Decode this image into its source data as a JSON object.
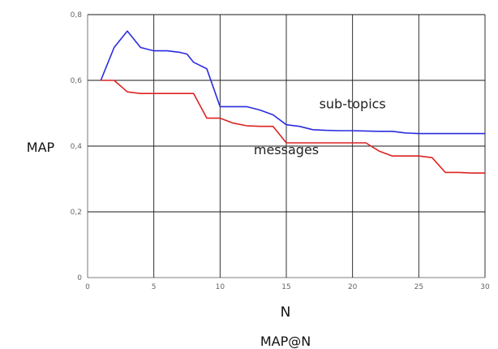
{
  "chart_data": {
    "type": "line",
    "title": "",
    "caption": "MAP@N",
    "xlabel": "N",
    "ylabel": "MAP",
    "xlim": [
      0,
      30
    ],
    "ylim": [
      0,
      0.8
    ],
    "x_ticks": [
      0,
      5,
      10,
      15,
      20,
      25,
      30
    ],
    "x_tick_labels": [
      "0",
      "5",
      "10",
      "15",
      "20",
      "25",
      "30"
    ],
    "y_ticks": [
      0,
      0.2,
      0.4,
      0.6,
      0.8
    ],
    "y_tick_labels": [
      "0",
      "0,2",
      "0,4",
      "0,6",
      "0,8"
    ],
    "grid": true,
    "series": [
      {
        "name": "sub-topics",
        "color": "#2b2be0",
        "x": [
          1,
          2,
          3,
          4,
          5,
          6,
          7,
          7.5,
          8,
          9,
          10,
          11,
          12,
          13,
          14,
          15,
          16,
          17,
          18,
          19,
          20,
          21,
          22,
          23,
          24,
          25,
          26,
          27,
          28,
          29,
          30
        ],
        "y": [
          0.6,
          0.7,
          0.75,
          0.7,
          0.69,
          0.69,
          0.685,
          0.68,
          0.655,
          0.635,
          0.52,
          0.52,
          0.52,
          0.51,
          0.495,
          0.465,
          0.46,
          0.45,
          0.448,
          0.447,
          0.447,
          0.446,
          0.445,
          0.445,
          0.44,
          0.438,
          0.438,
          0.438,
          0.438,
          0.438,
          0.438
        ]
      },
      {
        "name": "messages",
        "color": "#dd2222",
        "x": [
          1,
          2,
          3,
          4,
          5,
          6,
          7,
          8,
          9,
          10,
          11,
          12,
          13,
          14,
          15,
          16,
          17,
          18,
          19,
          20,
          21,
          22,
          23,
          24,
          25,
          26,
          27,
          28,
          29,
          30
        ],
        "y": [
          0.6,
          0.6,
          0.565,
          0.56,
          0.56,
          0.56,
          0.56,
          0.56,
          0.485,
          0.485,
          0.47,
          0.462,
          0.46,
          0.46,
          0.41,
          0.41,
          0.41,
          0.41,
          0.41,
          0.41,
          0.41,
          0.385,
          0.37,
          0.37,
          0.37,
          0.365,
          0.32,
          0.32,
          0.318,
          0.318
        ]
      }
    ],
    "annotations": [
      {
        "text": "sub-topics",
        "x": 20,
        "y": 0.515
      },
      {
        "text": "messages",
        "x": 15,
        "y": 0.375
      }
    ]
  }
}
